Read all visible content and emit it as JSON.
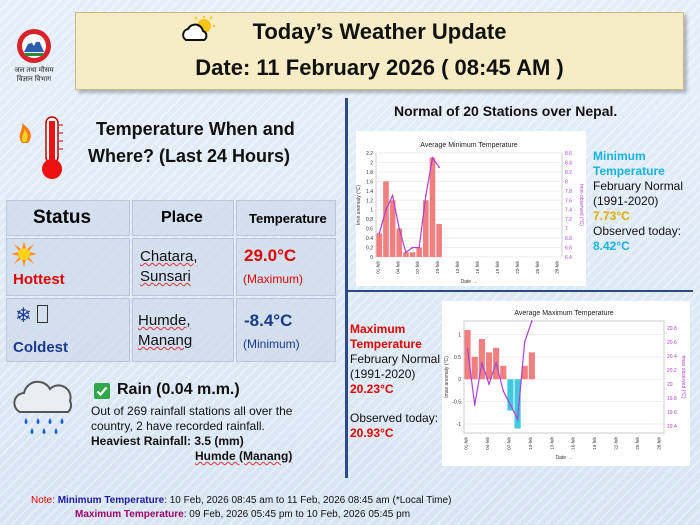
{
  "header": {
    "title": "Today’s Weather Update",
    "date_line": "Date: 11 February 2026 ( 08:45 AM )"
  },
  "logo": {
    "line1": "जल तथा मौसम",
    "line2": "विज्ञान विभाग"
  },
  "temp_section": {
    "title_line1": "Temperature When and",
    "title_line2": "Where? (Last 24 Hours)",
    "headers": {
      "status": "Status",
      "place": "Place",
      "temperature": "Temperature"
    },
    "rows": [
      {
        "status": "Hottest",
        "place_line1": "Chatara,",
        "place_line2": "Sunsari",
        "temp": "29.0°C",
        "qualifier": "(Maximum)"
      },
      {
        "status": "Coldest",
        "place_line1": "Humde,",
        "place_line2": "Manang",
        "temp": "-8.4°C",
        "qualifier": "(Minimum)"
      }
    ]
  },
  "rain": {
    "title": "Rain (0.04 m.m.)",
    "line1": "Out of 269 rainfall stations all over the",
    "line2": "country, 2 have recorded rainfall.",
    "heaviest": "Heaviest Rainfall: 3.5 (mm)",
    "station": "Humde (Manang)"
  },
  "normals": {
    "title": "Normal of 20 Stations over Nepal.",
    "min": {
      "label_line1": "Minimum",
      "label_line2": "Temperature",
      "normal_line1": "February Normal",
      "normal_line2": "(1991-2020)",
      "normal_value": "7.73°C",
      "observed_label": "Observed today:",
      "observed_value": "8.42°C"
    },
    "max": {
      "label_line1": "Maximum",
      "label_line2": "Temperature",
      "normal_line1": "February Normal",
      "normal_line2": "(1991-2020)",
      "normal_value": "20.23°C",
      "observed_label": "Observed today:",
      "observed_value": "20.93°C"
    }
  },
  "note": {
    "prefix": "Note:",
    "min_label": "Minimum Temperature",
    "min_text": ": 10 Feb, 2026  08:45 am  to 11 Feb, 2026  08:45 am (*Local Time)",
    "max_label": "Maximum Temperature",
    "max_text": ":  09 Feb, 2026  05:45 pm  to 10 Feb, 2026  05:45 pm"
  },
  "chart_data": [
    {
      "type": "bar",
      "title": "Average Minimum Temperature",
      "xlabel": "Date →",
      "ylabel": "tmin anomaly (°C)",
      "ylabel_right": "tmin observed (°C)",
      "x_ticks": [
        "01-feb",
        "04-feb",
        "07-feb",
        "10-feb",
        "13-feb",
        "16-feb",
        "19-feb",
        "22-feb",
        "25-feb",
        "28-feb"
      ],
      "ylim": [
        0,
        2.2
      ],
      "y_ticks": [
        "0",
        "0.2",
        "0.4",
        "0.6",
        "0.8",
        "1",
        "1.2",
        "1.4",
        "1.6",
        "1.8",
        "2",
        "2.2"
      ],
      "y2lim": [
        6.4,
        8.6
      ],
      "y2_ticks": [
        "6.4",
        "6.6",
        "6.8",
        "7",
        "7.2",
        "7.4",
        "7.6",
        "7.8",
        "8",
        "8.2",
        "8.4",
        "8.6"
      ],
      "anomaly": [
        0.5,
        1.6,
        1.2,
        0.6,
        0.1,
        0.1,
        0.2,
        1.2,
        2.1,
        0.7
      ],
      "observed": [
        6.9,
        7.4,
        7.7,
        7.0,
        6.5,
        6.6,
        6.6,
        7.7,
        8.5,
        8.3
      ],
      "colors": {
        "positive": "#f08080",
        "negative": "#40c8e0",
        "line": "#b040d0"
      }
    },
    {
      "type": "bar",
      "title": "Average Maximum Temperature",
      "xlabel": "Date →",
      "ylabel": "tmax anomaly (°C)",
      "ylabel_right": "tmax observed (°C)",
      "x_ticks": [
        "01-feb",
        "04-feb",
        "07-feb",
        "10-feb",
        "13-feb",
        "16-feb",
        "19-feb",
        "22-feb",
        "25-feb",
        "28-feb"
      ],
      "ylim": [
        -1.2,
        1.3
      ],
      "y_ticks": [
        "-1",
        "-0.5",
        "0",
        "0.5",
        "1"
      ],
      "y2lim": [
        19.3,
        20.9
      ],
      "y2_ticks": [
        "19.4",
        "19.6",
        "19.8",
        "20",
        "20.2",
        "20.4",
        "20.6",
        "20.8"
      ],
      "anomaly": [
        1.1,
        0.5,
        0.9,
        0.6,
        0.7,
        0.3,
        -0.7,
        -1.1,
        0.3,
        0.6
      ],
      "observed": [
        20.5,
        19.7,
        20.3,
        20.0,
        20.3,
        19.9,
        19.7,
        19.5,
        20.6,
        20.9
      ],
      "colors": {
        "positive": "#f08080",
        "negative": "#40c8e0",
        "line": "#b040d0"
      }
    }
  ]
}
